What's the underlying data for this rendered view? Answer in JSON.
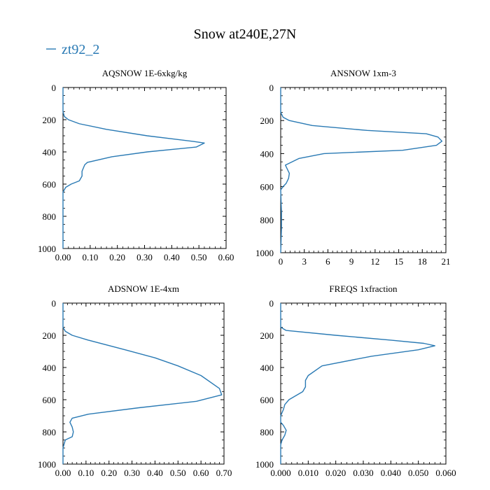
{
  "figure": {
    "title": "Snow at240E,27N",
    "legend": {
      "label": "zt92_2",
      "color": "#2a7ab4",
      "position": "top-left"
    }
  },
  "chart_data": [
    {
      "type": "line",
      "title": "AQSNOW  1E-6xkg/kg",
      "xlim": [
        0,
        0.6
      ],
      "xticks": [
        "0.00",
        "0.10",
        "0.20",
        "0.30",
        "0.40",
        "0.50",
        "0.60"
      ],
      "ylim": [
        1000,
        0
      ],
      "yticks": [
        "0",
        "200",
        "400",
        "600",
        "800",
        "1000"
      ],
      "series": [
        {
          "name": "zt92_2",
          "values": [
            0,
            0,
            0.005,
            0.02,
            0.06,
            0.16,
            0.31,
            0.48,
            0.52,
            0.49,
            0.31,
            0.18,
            0.09,
            0.08,
            0.07,
            0.07,
            0.06,
            0.03,
            0.01,
            0,
            0,
            0,
            0
          ],
          "levels": [
            0,
            150,
            180,
            200,
            225,
            260,
            300,
            335,
            345,
            370,
            400,
            430,
            465,
            480,
            520,
            550,
            580,
            600,
            620,
            650,
            760,
            850,
            1000
          ]
        }
      ]
    },
    {
      "type": "line",
      "title": "ANSNOW  1xm-3",
      "xlim": [
        0,
        21
      ],
      "xticks": [
        "0",
        "3",
        "6",
        "9",
        "12",
        "15",
        "18",
        "21"
      ],
      "ylim": [
        1000,
        0
      ],
      "yticks": [
        "0",
        "200",
        "400",
        "600",
        "800",
        "1000"
      ],
      "series": [
        {
          "name": "zt92_2",
          "values": [
            0,
            0,
            0.3,
            1.1,
            4,
            11,
            18.5,
            20,
            20.5,
            19.8,
            15.5,
            5.5,
            2.3,
            0.6,
            0.9,
            1.1,
            1,
            0.7,
            0.3,
            0,
            0.1,
            0.1,
            0
          ],
          "levels": [
            0,
            150,
            180,
            200,
            230,
            260,
            280,
            300,
            325,
            350,
            380,
            400,
            430,
            470,
            500,
            520,
            550,
            580,
            600,
            620,
            760,
            850,
            1000
          ]
        }
      ]
    },
    {
      "type": "line",
      "title": "ADSNOW  1E-4xm",
      "xlim": [
        0,
        0.7
      ],
      "xticks": [
        "0.00",
        "0.10",
        "0.20",
        "0.30",
        "0.40",
        "0.50",
        "0.60",
        "0.70"
      ],
      "ylim": [
        1000,
        0
      ],
      "yticks": [
        "0",
        "200",
        "400",
        "600",
        "800",
        "1000"
      ],
      "series": [
        {
          "name": "zt92_2",
          "values": [
            0,
            0,
            0.01,
            0.04,
            0.11,
            0.27,
            0.4,
            0.5,
            0.6,
            0.68,
            0.69,
            0.58,
            0.33,
            0.11,
            0.04,
            0.03,
            0.04,
            0.045,
            0.04,
            0.01,
            0,
            0
          ],
          "levels": [
            0,
            150,
            175,
            200,
            230,
            290,
            340,
            390,
            450,
            530,
            570,
            610,
            650,
            690,
            715,
            740,
            770,
            800,
            830,
            850,
            900,
            1000
          ]
        }
      ]
    },
    {
      "type": "line",
      "title": "FREQS  1xfraction",
      "xlim": [
        0,
        0.06
      ],
      "xticks": [
        "0.000",
        "0.010",
        "0.020",
        "0.030",
        "0.040",
        "0.050",
        "0.060"
      ],
      "ylim": [
        1000,
        0
      ],
      "yticks": [
        "0",
        "200",
        "400",
        "600",
        "800",
        "1000"
      ],
      "series": [
        {
          "name": "zt92_2",
          "values": [
            0,
            0,
            0.002,
            0.02,
            0.04,
            0.052,
            0.056,
            0.05,
            0.033,
            0.015,
            0.01,
            0.009,
            0.009,
            0.008,
            0.005,
            0.003,
            0.0015,
            0.001,
            0,
            0,
            0.001,
            0.002,
            0.0015,
            0.0005,
            0,
            0
          ],
          "levels": [
            0,
            150,
            170,
            200,
            230,
            250,
            265,
            290,
            330,
            390,
            450,
            480,
            520,
            550,
            580,
            600,
            630,
            660,
            700,
            740,
            760,
            790,
            820,
            850,
            880,
            1000
          ]
        }
      ]
    }
  ]
}
